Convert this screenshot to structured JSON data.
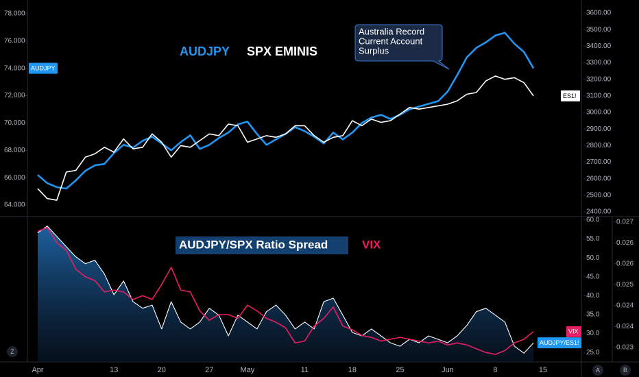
{
  "chart_data": [
    {
      "type": "line",
      "legend_labels": [
        "AUDJPY",
        "SPX EMINIS"
      ],
      "annotation": {
        "lines": [
          "Australia Record",
          "Current Account",
          "Surplus"
        ]
      },
      "series": [
        {
          "name": "AUDJPY",
          "color": "#2196f3",
          "axis": "y",
          "values": [
            66.2,
            65.6,
            65.3,
            65.2,
            65.8,
            66.5,
            66.9,
            67.0,
            67.8,
            68.4,
            68.2,
            68.7,
            69.0,
            68.5,
            68.0,
            68.6,
            69.1,
            68.1,
            68.4,
            68.9,
            69.3,
            69.9,
            70.1,
            69.2,
            68.4,
            68.8,
            69.2,
            69.7,
            69.4,
            69.0,
            68.5,
            69.3,
            68.8,
            69.3,
            70.0,
            70.4,
            70.6,
            70.3,
            70.6,
            71.0,
            71.2,
            71.4,
            71.6,
            72.3,
            73.5,
            74.8,
            75.5,
            75.9,
            76.4,
            76.6,
            75.8,
            75.2,
            74.0,
            null
          ]
        },
        {
          "name": "ES1!",
          "color": "#ffffff",
          "axis": "y2",
          "values": [
            2540,
            2480,
            2470,
            2640,
            2650,
            2730,
            2750,
            2790,
            2760,
            2840,
            2780,
            2790,
            2870,
            2820,
            2730,
            2800,
            2790,
            2830,
            2870,
            2860,
            2930,
            2920,
            2820,
            2840,
            2860,
            2850,
            2870,
            2920,
            2920,
            2860,
            2820,
            2850,
            2860,
            2950,
            2920,
            2960,
            2940,
            2950,
            2990,
            3030,
            3020,
            3030,
            3040,
            3050,
            3070,
            3110,
            3120,
            3190,
            3220,
            3200,
            3210,
            3180,
            3100,
            null
          ]
        }
      ],
      "ylim": [
        63.15,
        79.0
      ],
      "yticks": [
        {
          "value": 64,
          "label": "64.000"
        },
        {
          "value": 66,
          "label": "66.000"
        },
        {
          "value": 68,
          "label": "68.000"
        },
        {
          "value": 70,
          "label": "70.000"
        },
        {
          "value": 72,
          "label": "72.000"
        },
        {
          "value": 74,
          "label": "74.000"
        },
        {
          "value": 76,
          "label": "76.000"
        },
        {
          "value": 78,
          "label": "78.000"
        }
      ],
      "y2lim": [
        2371,
        3679
      ],
      "y2ticks": [
        {
          "value": 2400,
          "label": "2400.00"
        },
        {
          "value": 2500,
          "label": "2500.00"
        },
        {
          "value": 2600,
          "label": "2600.00"
        },
        {
          "value": 2700,
          "label": "2700.00"
        },
        {
          "value": 2800,
          "label": "2800.00"
        },
        {
          "value": 2900,
          "label": "2900.00"
        },
        {
          "value": 3000,
          "label": "3000.00"
        },
        {
          "value": 3100,
          "label": "3100.00"
        },
        {
          "value": 3200,
          "label": "3200.00"
        },
        {
          "value": 3300,
          "label": "3300.00"
        },
        {
          "value": 3400,
          "label": "3400.00"
        },
        {
          "value": 3500,
          "label": "3500.00"
        },
        {
          "value": 3600,
          "label": "3600.00"
        }
      ],
      "grid": false
    },
    {
      "type": "line",
      "legend_labels": [
        "AUDJPY/SPX Ratio Spread",
        "VIX"
      ],
      "categories": [
        "Apr",
        null,
        null,
        null,
        null,
        null,
        null,
        null,
        "13",
        null,
        null,
        null,
        null,
        "20",
        null,
        null,
        null,
        null,
        "27",
        null,
        null,
        null,
        "May",
        null,
        null,
        null,
        null,
        null,
        "11",
        null,
        null,
        null,
        null,
        "18",
        null,
        null,
        null,
        null,
        "25",
        null,
        null,
        null,
        null,
        "Jun",
        null,
        null,
        null,
        null,
        "8",
        null,
        null,
        null,
        null,
        "15"
      ],
      "series": [
        {
          "name": "AUDJPY/ES1!",
          "color": "#ffffff",
          "axis": "y2",
          "area": true,
          "values": [
            0.02665,
            0.02687,
            0.02654,
            0.02621,
            0.02589,
            0.02567,
            0.02578,
            0.02534,
            0.02468,
            0.02512,
            0.02446,
            0.02425,
            0.02435,
            0.02359,
            0.02446,
            0.02381,
            0.02359,
            0.02381,
            0.02425,
            0.02403,
            0.02337,
            0.02403,
            0.02381,
            0.02359,
            0.02414,
            0.02435,
            0.02403,
            0.02359,
            0.02381,
            0.02359,
            0.02446,
            0.02457,
            0.02403,
            0.02348,
            0.02337,
            0.02359,
            0.02337,
            0.02315,
            0.02304,
            0.02326,
            0.02315,
            0.02337,
            0.02326,
            0.02315,
            0.02337,
            0.0237,
            0.02414,
            0.02425,
            0.02403,
            0.02381,
            0.02304,
            0.02282,
            0.02315,
            null
          ]
        },
        {
          "name": "VIX",
          "color": "#e91e63",
          "axis": "y",
          "values": [
            57.0,
            58.0,
            54.0,
            52.0,
            47.0,
            45.0,
            44.0,
            41.0,
            41.5,
            41.0,
            39.0,
            40.0,
            39.0,
            43.0,
            47.5,
            41.5,
            41.0,
            36.0,
            33.5,
            35.0,
            35.0,
            34.0,
            37.5,
            36.0,
            34.0,
            33.0,
            31.5,
            27.5,
            28.0,
            32.0,
            34.0,
            37.0,
            32.0,
            31.0,
            29.5,
            29.0,
            28.0,
            28.5,
            29.0,
            28.5,
            28.0,
            27.5,
            28.0,
            27.0,
            27.5,
            27.0,
            26.0,
            25.0,
            24.5,
            25.5,
            27.5,
            28.5,
            30.5,
            null
          ]
        }
      ],
      "ylim": [
        22.5,
        60.9
      ],
      "yticks": [
        {
          "value": 25,
          "label": "25.0"
        },
        {
          "value": 30,
          "label": "30.0"
        },
        {
          "value": 35,
          "label": "35.0"
        },
        {
          "value": 40,
          "label": "40.0"
        },
        {
          "value": 45,
          "label": "45.0"
        },
        {
          "value": 50,
          "label": "50.0"
        },
        {
          "value": 55,
          "label": "55.0"
        },
        {
          "value": 60,
          "label": "60.0"
        }
      ],
      "y2lim": [
        0.02254,
        0.02717
      ],
      "y2ticks": [
        {
          "value": 0.023,
          "label": "0.023"
        },
        {
          "value": 0.023667,
          "label": "0.024"
        },
        {
          "value": 0.024333,
          "label": "0.024"
        },
        {
          "value": 0.025,
          "label": "0.025"
        },
        {
          "value": 0.025667,
          "label": "0.026"
        },
        {
          "value": 0.026333,
          "label": "0.026"
        },
        {
          "value": 0.027,
          "label": "0.027"
        }
      ],
      "grid": false
    }
  ],
  "ui_buttons": [
    "Z",
    "A",
    "B"
  ]
}
